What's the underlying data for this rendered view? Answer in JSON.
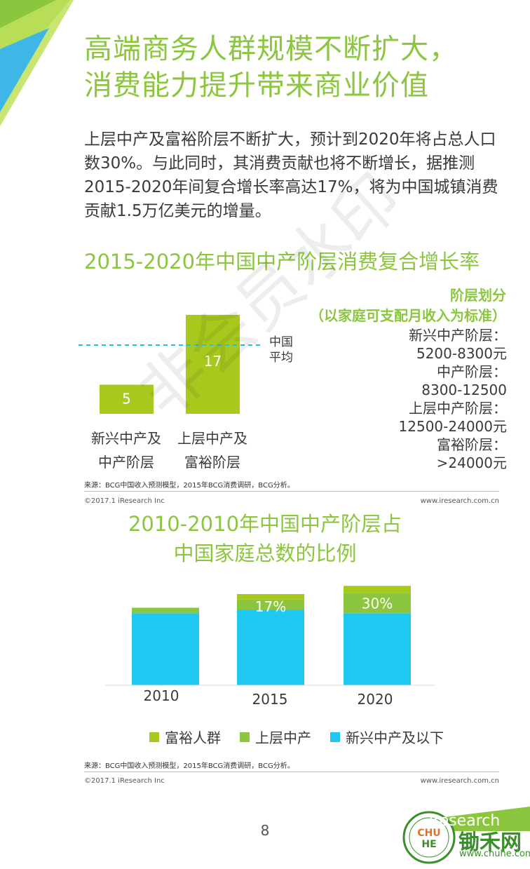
{
  "title_lines": [
    "高端商务人群规模不断扩大，",
    "消费能力提升带来商业价值"
  ],
  "intro": "上层中产及富裕阶层不断扩大，预计到2020年将占总人口数30%。与此同时，其消费贡献也将不断增长，据推测2015-2020年间复合增长率高达17%，将为中国城镇消费贡献1.5万亿美元的增量。",
  "chart1": {
    "title": "2015-2020年中国中产阶层消费复合增长率",
    "avg_label_lines": [
      "中国",
      "平均"
    ],
    "bars": [
      {
        "label_lines": [
          "新兴中产及",
          "中产阶层"
        ],
        "value": 5,
        "value_text": "5"
      },
      {
        "label_lines": [
          "上层中产及",
          "富裕阶层"
        ],
        "value": 17,
        "value_text": "17"
      }
    ],
    "legend_head_lines": [
      "阶层划分",
      "（以家庭可支配月收入为标准）"
    ],
    "tiers": [
      "新兴中产阶层：",
      "5200-8300元",
      "中产阶层：",
      "8300-12500",
      "上层中产阶层：",
      "12500-24000元",
      "富裕阶层：",
      ">24000元"
    ],
    "source": "来源：BCG中国收入预测模型，2015年BCG消费调研，BCG分析。"
  },
  "footer1": {
    "left": "©2017.1 iResearch Inc",
    "right": "www.iresearch.com.cn"
  },
  "chart2": {
    "title_lines": [
      "2010-2010年中国中产阶层占",
      "中国家庭总数的比例"
    ],
    "source": "来源：BCG中国收入预测模型，2015年BCG消费调研，BCG分析。"
  },
  "chart_data": [
    {
      "type": "bar",
      "title": "2015-2020年中国中产阶层消费复合增长率",
      "categories": [
        "新兴中产及中产阶层",
        "上层中产及富裕阶层"
      ],
      "values": [
        5,
        17
      ],
      "reference_line": "中国平均",
      "colors": {
        "bar": "#a7c91e",
        "reference": "#1ec3e6"
      }
    },
    {
      "type": "bar",
      "stacked": true,
      "categories": [
        "2010",
        "2015",
        "2020"
      ],
      "series": [
        {
          "name": "新兴中产及以下",
          "values": [
            79,
            83,
            79
          ],
          "color": "#1ec8f0"
        },
        {
          "name": "上层中产",
          "values": [
            6,
            11,
            22
          ],
          "color": "#8cc63f"
        },
        {
          "name": "富裕人群",
          "values": [
            0,
            6,
            8
          ],
          "color": "#a7c91e"
        }
      ],
      "segment_labels": [
        "",
        "17%",
        "30%"
      ],
      "legend": [
        "富裕人群",
        "上层中产",
        "新兴中产及以下"
      ],
      "legend_position": "bottom"
    }
  ],
  "footer2": {
    "left": "©2017.1 iResearch Inc",
    "right": "www.iresearch.com.cn"
  },
  "page_number": "8",
  "watermark": "非会员水印",
  "brand": {
    "iresearch": "iresearch",
    "cn": "锄禾网",
    "url": "www.chuhe.com"
  }
}
